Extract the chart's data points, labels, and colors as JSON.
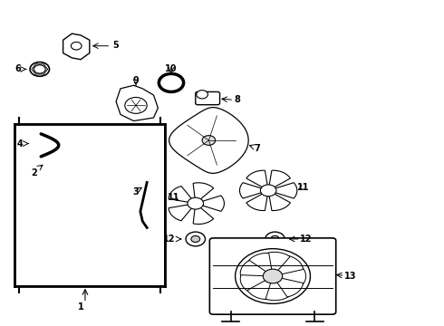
{
  "title": "",
  "background_color": "#ffffff",
  "line_color": "#000000",
  "label_color": "#000000",
  "fig_width": 4.9,
  "fig_height": 3.6,
  "dpi": 100
}
